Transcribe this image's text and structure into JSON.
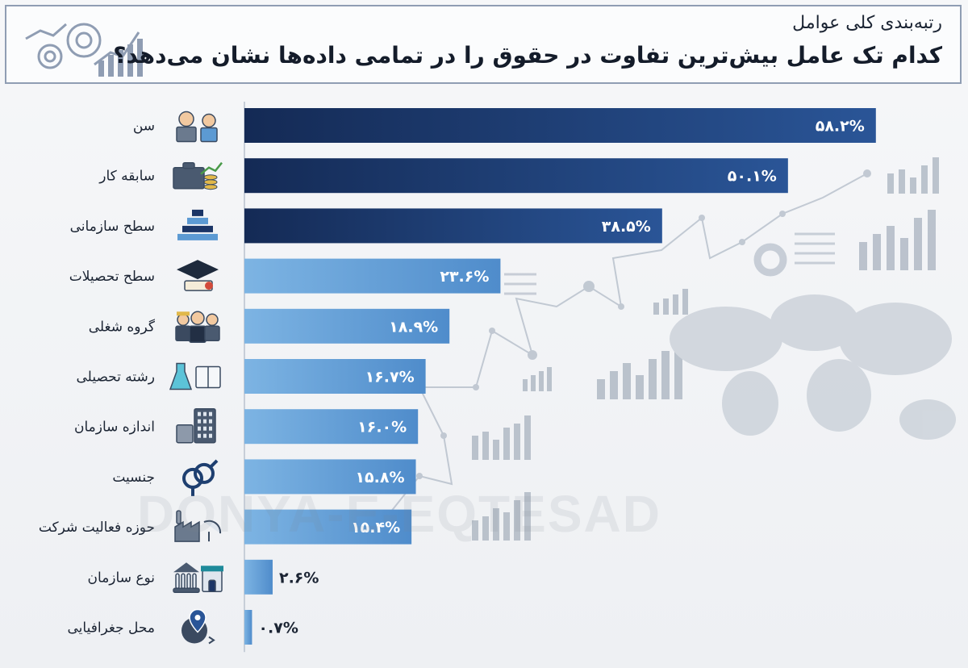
{
  "header": {
    "title": "رتبه‌بندی کلی عوامل",
    "subtitle": "کدام تک عامل بیش‌ترین تفاوت در حقوق را در تمامی داده‌ها نشان می‌دهد؟"
  },
  "watermark": "DONYA-E-EQTESAD",
  "colors": {
    "dark": "#1b3566",
    "light": "#5c9ad3",
    "frame": "#8f9db3"
  },
  "chart_data": {
    "type": "bar",
    "orientation": "horizontal",
    "title": "رتبه‌بندی کلی عوامل",
    "subtitle": "کدام تک عامل بیش‌ترین تفاوت در حقوق را در تمامی داده‌ها نشان می‌دهد؟",
    "xlabel": "",
    "ylabel": "",
    "xlim": [
      0,
      70
    ],
    "grid": false,
    "categories": [
      "سن",
      "سابقه کار",
      "سطح سازمانی",
      "سطح تحصیلات",
      "گروه شغلی",
      "رشته تحصیلی",
      "اندازه سازمان",
      "جنسیت",
      "حوزه فعالیت شرکت",
      "نوع سازمان",
      "محل جغرافیایی"
    ],
    "values": [
      58.2,
      50.1,
      38.5,
      23.6,
      18.9,
      16.7,
      16.0,
      15.8,
      15.4,
      2.6,
      0.7
    ],
    "value_labels": [
      "۵۸.۲%",
      "۵۰.۱%",
      "۳۸.۵%",
      "۲۳.۶%",
      "۱۸.۹%",
      "۱۶.۷%",
      "۱۶.۰%",
      "۱۵.۸%",
      "۱۵.۴%",
      "۲.۶%",
      "۰.۷%"
    ],
    "icons": [
      "people-age-icon",
      "briefcase-coins-icon",
      "pyramid-icon",
      "graduation-cap-icon",
      "workers-icon",
      "flask-book-icon",
      "buildings-icon",
      "gender-icon",
      "factory-satellite-icon",
      "bank-shop-icon",
      "globe-pin-icon"
    ]
  }
}
